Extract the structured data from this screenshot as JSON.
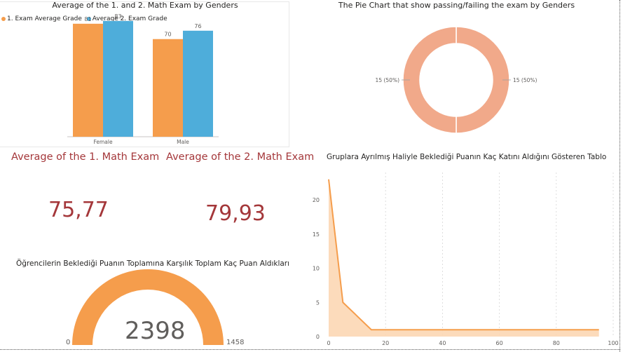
{
  "colors": {
    "orange": "#f59d4c",
    "blue": "#4eadda",
    "pie": "#f1a98a",
    "kpi": "#a4373a",
    "gauge": "#f59d4c",
    "area_fill": "#fcd7b4",
    "area_line": "#f59d4c"
  },
  "bar_chart": {
    "title": "Average of the 1. and 2. Math Exam by Genders"
  },
  "pie_chart": {
    "title": "The Pie Chart that show passing/failing the exam by Genders"
  },
  "kpi1": {
    "label": "Average of the 1. Math Exam",
    "value": "75,77"
  },
  "kpi2": {
    "label": "Average of the 2. Math Exam",
    "value": "79,93"
  },
  "gauge": {
    "title": "Öğrencilerin Beklediği Puanın Toplamına Karşılık Toplam Kaç Puan Aldıkları",
    "value": "2398",
    "min_label": "0",
    "max_label": "1458"
  },
  "line_chart": {
    "title": "Gruplara Ayrılmış Haliyle Beklediği Puanın Kaç Katını Aldığını Gösteren Tablo"
  },
  "chart_data": [
    {
      "type": "bar",
      "title": "Average of the 1. and 2. Math Exam by Genders",
      "categories": [
        "Female",
        "Male"
      ],
      "series": [
        {
          "name": "1. Exam Average Grade",
          "values": [
            81,
            70
          ],
          "color": "#f59d4c"
        },
        {
          "name": "Average 2. Exam Grade",
          "values": [
            83,
            76
          ],
          "color": "#4eadda"
        }
      ],
      "ylim": [
        0,
        95
      ],
      "legend": "top-left"
    },
    {
      "type": "pie",
      "title": "The Pie Chart that show passing/failing the exam by Genders",
      "slices": [
        {
          "value": 15,
          "label": "15 (50%)"
        },
        {
          "value": 15,
          "label": "15 (50%)"
        }
      ]
    },
    {
      "type": "area",
      "title": "Gruplara Ayrılmış Haliyle Beklediği Puanın Kaç Katını Aldığını Gösteren Tablo",
      "x": [
        0,
        5,
        15,
        95
      ],
      "y": [
        23,
        5,
        1,
        1
      ],
      "xlim": [
        0,
        100
      ],
      "ylim": [
        0,
        24
      ],
      "x_ticks": [
        "0",
        "20",
        "40",
        "60",
        "80",
        "100"
      ],
      "y_ticks": [
        "0",
        "5",
        "10",
        "15",
        "20"
      ]
    }
  ]
}
